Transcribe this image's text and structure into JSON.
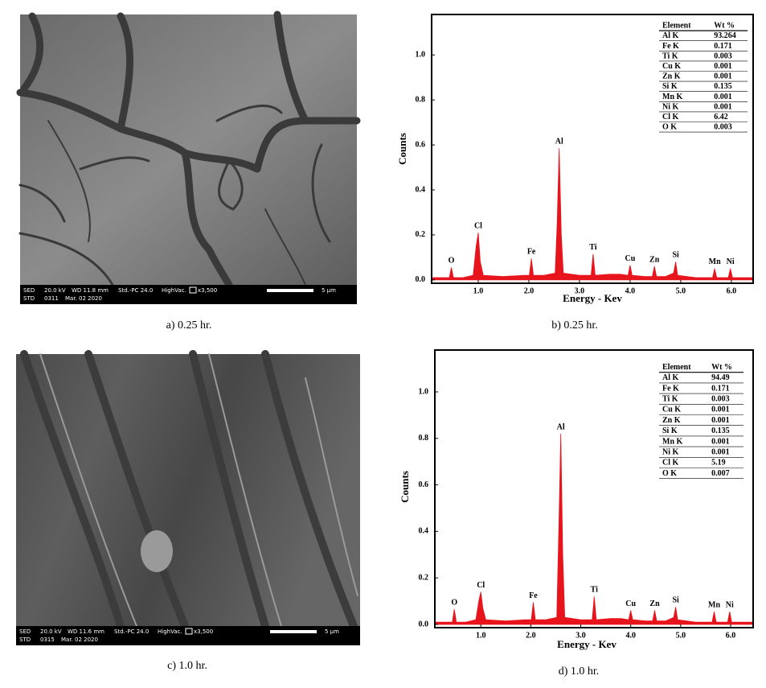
{
  "sem_images": [
    {
      "caption": "a) 0.25 hr.",
      "mode": "SED",
      "kv": "20.0 kV",
      "wd": "WD 11.8 mm",
      "pc": "Std.-PC 24.0",
      "vac": "HighVac.",
      "mag": "x3,500",
      "scale": "5 µm",
      "std": "STD",
      "number": "0311",
      "date": "Mar. 02 2020"
    },
    {
      "caption": "c) 1.0 hr.",
      "mode": "SED",
      "kv": "20.0 kV",
      "wd": "WD 11.6 mm",
      "pc": "Std.-PC 24.0",
      "vac": "HighVac.",
      "mag": "x3,500",
      "scale": "5 µm",
      "std": "STD",
      "number": "0315",
      "date": "Mar. 02 2020"
    }
  ],
  "chart_data": [
    {
      "type": "area",
      "caption": "b) 0.25 hr.",
      "xlabel": "Energy - Kev",
      "ylabel": "Counts",
      "color": "#e8141c",
      "xlim": [
        0.08,
        6.43
      ],
      "ylim": [
        -0.015,
        1.18
      ],
      "xticks": [
        {
          "value": 1,
          "label": "1.0"
        },
        {
          "value": 2,
          "label": "2.0"
        },
        {
          "value": 3,
          "label": "3.0"
        },
        {
          "value": 4,
          "label": "4.0"
        },
        {
          "value": 5,
          "label": "5.0"
        },
        {
          "value": 6,
          "label": "6.0"
        }
      ],
      "yticks": [
        {
          "value": 0,
          "label": "0.0"
        },
        {
          "value": 0.2,
          "label": "0.2"
        },
        {
          "value": 0.4,
          "label": "0.4"
        },
        {
          "value": 0.6,
          "label": "0.6"
        },
        {
          "value": 0.8,
          "label": "0.8"
        },
        {
          "value": 1,
          "label": "1.0"
        }
      ],
      "x": [
        0.1,
        0.3,
        0.43,
        0.47,
        0.51,
        0.7,
        0.9,
        0.96,
        1.0,
        1.04,
        1.1,
        1.5,
        1.9,
        2.01,
        2.05,
        2.09,
        2.3,
        2.52,
        2.56,
        2.6,
        2.64,
        2.68,
        3.0,
        3.23,
        3.27,
        3.31,
        3.6,
        3.8,
        3.96,
        4.0,
        4.04,
        4.3,
        4.44,
        4.48,
        4.52,
        4.7,
        4.86,
        4.9,
        4.94,
        5.3,
        5.63,
        5.67,
        5.71,
        5.94,
        5.98,
        6.02,
        6.3,
        6.43
      ],
      "values": [
        0.01,
        0.01,
        0.01,
        0.055,
        0.01,
        0.01,
        0.02,
        0.15,
        0.21,
        0.08,
        0.02,
        0.015,
        0.02,
        0.02,
        0.095,
        0.02,
        0.02,
        0.03,
        0.25,
        0.585,
        0.2,
        0.03,
        0.02,
        0.02,
        0.115,
        0.02,
        0.025,
        0.025,
        0.02,
        0.065,
        0.02,
        0.015,
        0.015,
        0.06,
        0.015,
        0.015,
        0.03,
        0.08,
        0.02,
        0.01,
        0.01,
        0.05,
        0.01,
        0.01,
        0.05,
        0.01,
        0.01,
        0.01
      ],
      "peak_labels": [
        "O",
        "Cl",
        "Fe",
        "Al",
        "Ti",
        "Cu",
        "Zn",
        "Si",
        "Mn",
        "Ni"
      ],
      "table": {
        "header": [
          "Element",
          "Wt %"
        ],
        "rows": [
          [
            "Al K",
            "93.264"
          ],
          [
            "Fe K",
            "0.171"
          ],
          [
            "Ti K",
            "0.003"
          ],
          [
            "Cu K",
            "0.001"
          ],
          [
            "Zn K",
            "0.001"
          ],
          [
            "Si K",
            "0.135"
          ],
          [
            "Mn K",
            "0.001"
          ],
          [
            "Ni K",
            "0.001"
          ],
          [
            "Cl K",
            "6.42"
          ],
          [
            "O K",
            "0.003"
          ]
        ]
      }
    },
    {
      "type": "area",
      "caption": "d) 1.0 hr.",
      "xlabel": "Energy - Kev",
      "ylabel": "Counts",
      "color": "#e8141c",
      "xlim": [
        0.08,
        6.45
      ],
      "ylim": [
        -0.014,
        1.18
      ],
      "xticks": [
        {
          "value": 1,
          "label": "1.0"
        },
        {
          "value": 2,
          "label": "2.0"
        },
        {
          "value": 3,
          "label": "3.0"
        },
        {
          "value": 4,
          "label": "4.0"
        },
        {
          "value": 5,
          "label": "5.0"
        },
        {
          "value": 6,
          "label": "6.0"
        }
      ],
      "yticks": [
        {
          "value": 0,
          "label": "0.0"
        },
        {
          "value": 0.2,
          "label": "0.2"
        },
        {
          "value": 0.4,
          "label": "0.4"
        },
        {
          "value": 0.6,
          "label": "0.6"
        },
        {
          "value": 0.8,
          "label": "0.8"
        },
        {
          "value": 1,
          "label": "1.0"
        }
      ],
      "x": [
        0.1,
        0.3,
        0.43,
        0.47,
        0.51,
        0.7,
        0.9,
        0.96,
        1.0,
        1.04,
        1.1,
        1.5,
        1.9,
        2.01,
        2.05,
        2.09,
        2.3,
        2.52,
        2.56,
        2.6,
        2.64,
        2.68,
        3.0,
        3.23,
        3.27,
        3.31,
        3.6,
        3.8,
        3.96,
        4.0,
        4.04,
        4.3,
        4.44,
        4.48,
        4.52,
        4.7,
        4.86,
        4.9,
        4.94,
        5.3,
        5.63,
        5.67,
        5.71,
        5.94,
        5.98,
        6.02,
        6.3,
        6.43
      ],
      "values": [
        0.01,
        0.01,
        0.01,
        0.065,
        0.01,
        0.01,
        0.02,
        0.1,
        0.14,
        0.07,
        0.02,
        0.015,
        0.02,
        0.02,
        0.095,
        0.02,
        0.02,
        0.03,
        0.4,
        0.82,
        0.3,
        0.03,
        0.02,
        0.02,
        0.12,
        0.02,
        0.025,
        0.025,
        0.02,
        0.06,
        0.02,
        0.015,
        0.015,
        0.06,
        0.015,
        0.015,
        0.03,
        0.075,
        0.02,
        0.01,
        0.01,
        0.055,
        0.01,
        0.01,
        0.055,
        0.01,
        0.01,
        0.01
      ],
      "peak_labels": [
        "O",
        "Cl",
        "Fe",
        "Al",
        "Ti",
        "Cu",
        "Zn",
        "Si",
        "Mn",
        "Ni"
      ],
      "table": {
        "header": [
          "Element",
          "Wt %"
        ],
        "rows": [
          [
            "Al K",
            "94.49"
          ],
          [
            "Fe K",
            "0.171"
          ],
          [
            "Ti K",
            "0.003"
          ],
          [
            "Cu K",
            "0.001"
          ],
          [
            "Zn K",
            "0.001"
          ],
          [
            "Si K",
            "0.135"
          ],
          [
            "Mn K",
            "0.001"
          ],
          [
            "Ni K",
            "0.001"
          ],
          [
            "Cl K",
            "5.19"
          ],
          [
            "O K",
            "0.007"
          ]
        ]
      }
    }
  ]
}
